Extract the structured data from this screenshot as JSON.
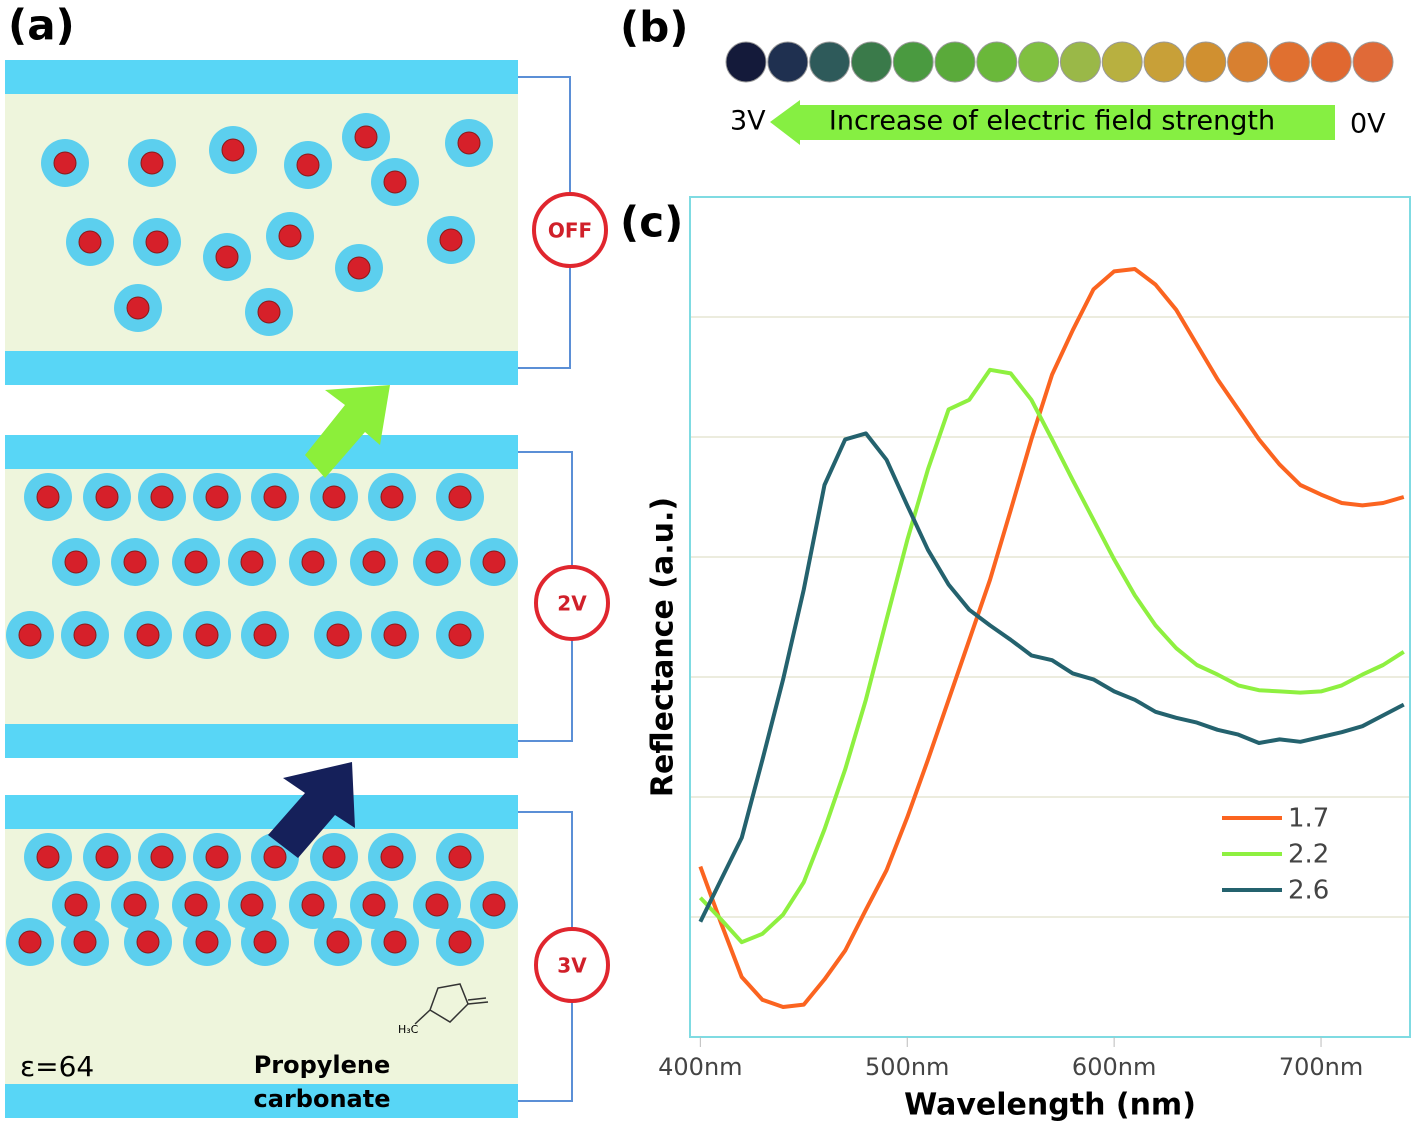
{
  "panel_labels": [
    "(a)",
    "(b)",
    "(c)"
  ],
  "panel_a": {
    "cells": [
      {
        "state": "OFF"
      },
      {
        "state": "2V"
      },
      {
        "state": "3V"
      }
    ],
    "dielectric": "ε=64",
    "solvent": [
      "Propylene",
      "carbonate"
    ],
    "molecule_label": "H₃C"
  },
  "panel_b": {
    "left_label": "3V",
    "arrow_label": "Increase of electric field strength",
    "right_label": "0V",
    "swatch_colors": [
      "#141a3a",
      "#1f3050",
      "#2e5a5a",
      "#3a7a4a",
      "#4a9a40",
      "#5aaa3a",
      "#6ab83a",
      "#80c040",
      "#9ab848",
      "#b8b040",
      "#c8a038",
      "#d09030",
      "#d88030",
      "#e07030",
      "#e06830",
      "#e06a38"
    ]
  },
  "chart_data": {
    "type": "line",
    "xlabel": "Wavelength (nm)",
    "ylabel": "Reflectance (a.u.)",
    "x": [
      400,
      410,
      420,
      430,
      440,
      450,
      460,
      470,
      480,
      490,
      500,
      510,
      520,
      530,
      540,
      550,
      560,
      570,
      580,
      590,
      600,
      610,
      620,
      630,
      640,
      650,
      660,
      670,
      680,
      690,
      700,
      710,
      720,
      730,
      740
    ],
    "xlim": [
      395,
      743
    ],
    "xticks": [
      {
        "value": 400,
        "label": "400nm"
      },
      {
        "value": 500,
        "label": "500nm"
      },
      {
        "value": 600,
        "label": "600nm"
      },
      {
        "value": 700,
        "label": "700nm"
      }
    ],
    "ylim": [
      0,
      7
    ],
    "yticks": [
      1,
      2,
      3,
      4,
      5,
      6
    ],
    "ytick_labels": false,
    "grid": true,
    "legend": "lower right",
    "series": [
      {
        "name": "1.7",
        "color": "#fb6420",
        "values": [
          1.42,
          0.95,
          0.5,
          0.31,
          0.25,
          0.27,
          0.48,
          0.72,
          1.06,
          1.39,
          1.83,
          2.31,
          2.81,
          3.31,
          3.81,
          4.39,
          4.98,
          5.52,
          5.89,
          6.23,
          6.38,
          6.4,
          6.27,
          6.06,
          5.77,
          5.48,
          5.23,
          4.98,
          4.77,
          4.6,
          4.52,
          4.45,
          4.43,
          4.45,
          4.5
        ]
      },
      {
        "name": "2.2",
        "color": "#8ef040",
        "values": [
          1.16,
          0.98,
          0.79,
          0.86,
          1.02,
          1.29,
          1.73,
          2.23,
          2.81,
          3.48,
          4.14,
          4.73,
          5.23,
          5.31,
          5.56,
          5.53,
          5.31,
          4.98,
          4.64,
          4.31,
          3.98,
          3.68,
          3.43,
          3.24,
          3.1,
          3.02,
          2.93,
          2.89,
          2.88,
          2.87,
          2.88,
          2.93,
          3.02,
          3.1,
          3.21
        ]
      },
      {
        "name": "2.6",
        "color": "#24626e",
        "values": [
          0.96,
          1.31,
          1.66,
          2.31,
          2.98,
          3.73,
          4.6,
          4.98,
          5.03,
          4.81,
          4.43,
          4.06,
          3.77,
          3.56,
          3.43,
          3.31,
          3.18,
          3.14,
          3.03,
          2.98,
          2.88,
          2.81,
          2.71,
          2.66,
          2.62,
          2.56,
          2.52,
          2.45,
          2.48,
          2.46,
          2.5,
          2.54,
          2.59,
          2.68,
          2.77
        ]
      }
    ]
  }
}
